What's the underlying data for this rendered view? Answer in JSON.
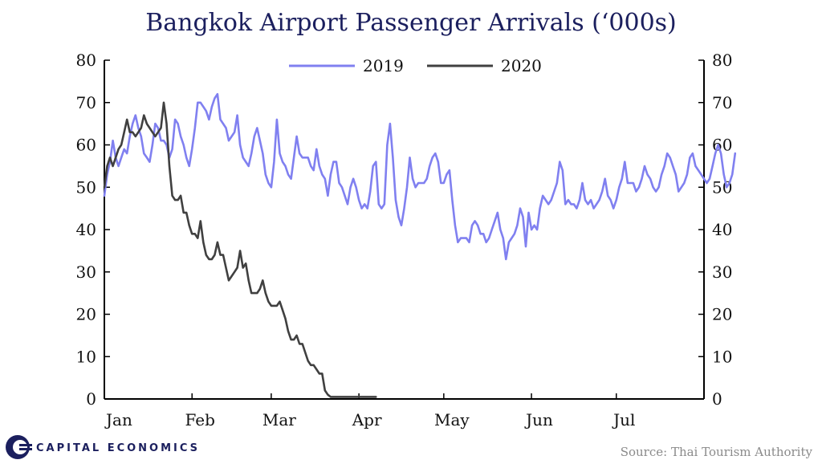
{
  "chart_data": {
    "type": "line",
    "title": "Bangkok Airport Passenger Arrivals (‘000s)",
    "xlabel": "",
    "ylabel": "",
    "ylim": [
      0,
      80
    ],
    "yticks": [
      0,
      10,
      20,
      30,
      40,
      50,
      60,
      70,
      80
    ],
    "xticks": [
      "Jan",
      "Feb",
      "Mar",
      "Apr",
      "May",
      "Jun",
      "Jul"
    ],
    "legend_position": "top-center",
    "grid": false,
    "series": [
      {
        "name": "2019",
        "color": "#8080f0",
        "x_start_day": 1,
        "values": [
          48,
          53,
          56,
          61,
          57,
          55,
          57,
          59,
          58,
          62,
          65,
          67,
          64,
          62,
          58,
          57,
          56,
          60,
          65,
          64,
          61,
          61,
          60,
          57,
          59,
          66,
          65,
          62,
          60,
          57,
          55,
          59,
          64,
          70,
          70,
          69,
          68,
          66,
          69,
          71,
          72,
          66,
          65,
          64,
          61,
          62,
          63,
          67,
          60,
          57,
          56,
          55,
          58,
          62,
          64,
          61,
          58,
          53,
          51,
          50,
          56,
          66,
          58,
          56,
          55,
          53,
          52,
          57,
          62,
          58,
          57,
          57,
          57,
          55,
          54,
          59,
          55,
          53,
          52,
          48,
          53,
          56,
          56,
          51,
          50,
          48,
          46,
          50,
          52,
          50,
          47,
          45,
          46,
          45,
          49,
          55,
          56,
          46,
          45,
          46,
          60,
          65,
          57,
          47,
          43,
          41,
          45,
          50,
          57,
          52,
          50,
          51,
          51,
          51,
          52,
          55,
          57,
          58,
          56,
          51,
          51,
          53,
          54,
          47,
          41,
          37,
          38,
          38,
          38,
          37,
          41,
          42,
          41,
          39,
          39,
          37,
          38,
          40,
          42,
          44,
          40,
          38,
          33,
          37,
          38,
          39,
          41,
          45,
          43,
          36,
          44,
          40,
          41,
          40,
          45,
          48,
          47,
          46,
          47,
          49,
          51,
          56,
          54,
          46,
          47,
          46,
          46,
          45,
          47,
          51,
          47,
          46,
          47,
          45,
          46,
          47,
          49,
          52,
          48,
          47,
          45,
          47,
          50,
          52,
          56,
          51,
          51,
          51,
          49,
          50,
          52,
          55,
          53,
          52,
          50,
          49,
          50,
          53,
          55,
          58,
          57,
          55,
          53,
          49,
          50,
          51,
          53,
          57,
          58,
          55,
          54,
          53,
          52,
          51,
          52,
          55,
          58,
          60,
          58,
          53,
          50,
          51,
          53,
          58
        ]
      },
      {
        "name": "2020",
        "color": "#404040",
        "x_start_day": 1,
        "values": [
          50,
          55,
          57,
          55,
          57,
          59,
          60,
          63,
          66,
          63,
          63,
          62,
          63,
          64,
          67,
          65,
          64,
          63,
          62,
          63,
          64,
          70,
          65,
          55,
          48,
          47,
          47,
          48,
          44,
          44,
          41,
          39,
          39,
          38,
          42,
          37,
          34,
          33,
          33,
          34,
          37,
          34,
          34,
          31,
          28,
          29,
          30,
          31,
          35,
          31,
          32,
          28,
          25,
          25,
          25,
          26,
          28,
          25,
          23,
          22,
          22,
          22,
          23,
          21,
          19,
          16,
          14,
          14,
          15,
          13,
          13,
          11,
          9,
          8,
          8,
          7,
          6,
          6,
          2,
          1,
          0.5,
          0.5,
          0.5,
          0.5,
          0.5,
          0.5,
          0.5,
          0.5,
          0.5,
          0.5,
          0.5,
          0.5,
          0.5,
          0.5,
          0.5,
          0.5,
          0.5
        ]
      }
    ]
  },
  "source": "Source: Thai Tourism Authority",
  "logo": {
    "text": "CAPITAL ECONOMICS",
    "color": "#1b1f5e"
  }
}
